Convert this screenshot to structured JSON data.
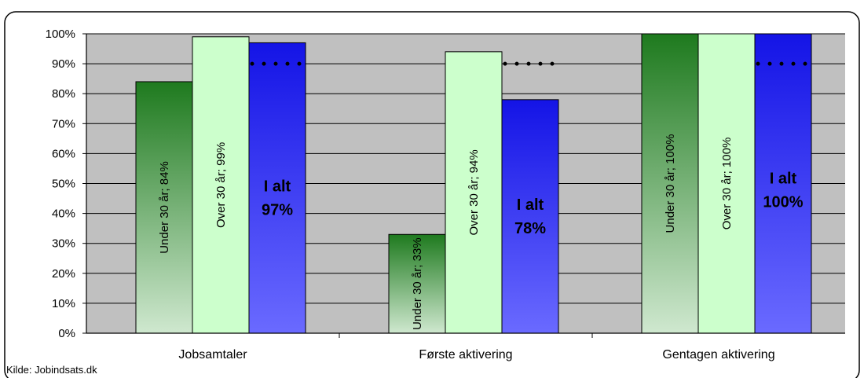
{
  "chart_data": {
    "type": "bar",
    "title": "",
    "xlabel": "",
    "ylabel": "",
    "ylim": [
      0,
      100
    ],
    "yticks": [
      "0%",
      "10%",
      "20%",
      "30%",
      "40%",
      "50%",
      "60%",
      "70%",
      "80%",
      "90%",
      "100%"
    ],
    "categories": [
      "Jobsamtaler",
      "Første aktivering",
      "Gentagen aktivering"
    ],
    "series": [
      {
        "values": [
          84,
          33,
          100
        ],
        "labels": [
          "Under 30 år; 84%",
          "Under 30 år; 33%",
          "Under 30 år; 100%"
        ],
        "color_top": "#1e7a1e",
        "color_bottom": "#cfe8cf"
      },
      {
        "values": [
          99,
          94,
          100
        ],
        "labels": [
          "Over 30 år; 99%",
          "Over 30 år; 94%",
          "Over 30 år; 100%"
        ],
        "color": "#ccffcc"
      },
      {
        "values": [
          97,
          78,
          100
        ],
        "labels": [
          [
            "I alt",
            "97%"
          ],
          [
            "I alt",
            "78%"
          ],
          [
            "I alt",
            "100%"
          ]
        ],
        "color_top": "#1414e6",
        "color_bottom": "#6a6aff"
      }
    ],
    "target_line": 90,
    "plot_background": "#c0c0c0",
    "grid": true,
    "legend": "none"
  },
  "source_text": "Kilde: Jobindsats.dk"
}
